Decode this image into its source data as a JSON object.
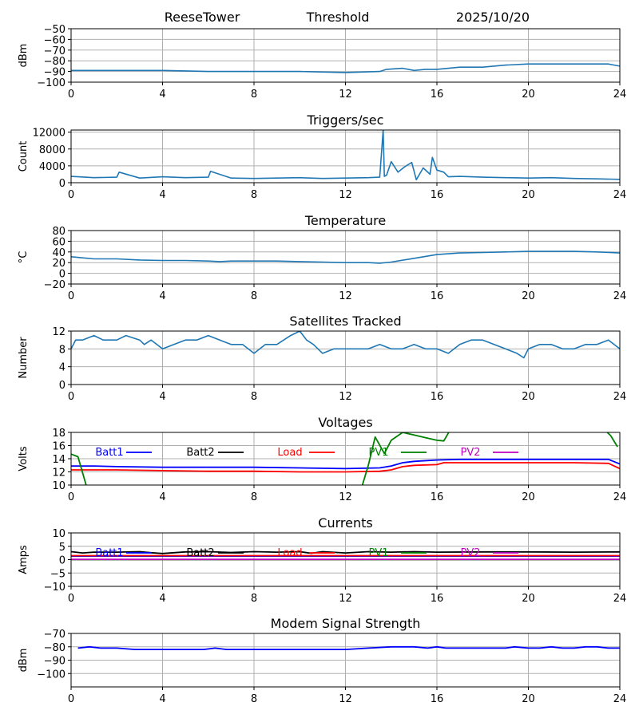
{
  "header": {
    "station": "ReeseTower",
    "threshold_label": "Threshold",
    "date": "2025/10/20"
  },
  "colors": {
    "series": "#1f77b4",
    "batt1": "#0000ff",
    "batt2": "#000000",
    "load": "#ff0000",
    "pv1": "#008000",
    "pv2": "#bf00bf",
    "grid": "#b0b0b0"
  },
  "chart_data": [
    {
      "id": "threshold",
      "type": "line",
      "title": "",
      "xlabel": "",
      "ylabel": "dBm",
      "xlim": [
        0,
        24
      ],
      "ylim": [
        -100,
        -50
      ],
      "xticks": [
        0,
        4,
        8,
        12,
        16,
        20,
        24
      ],
      "yticks": [
        -100,
        -90,
        -80,
        -70,
        -60,
        -50
      ],
      "series": [
        {
          "name": "Threshold",
          "color_key": "series",
          "x": [
            0,
            2,
            4,
            6,
            8,
            10,
            12,
            13.5,
            13.8,
            14.5,
            15,
            15.5,
            16,
            17,
            18,
            19,
            20,
            22,
            23.5,
            24
          ],
          "y": [
            -89,
            -89,
            -89,
            -90,
            -90,
            -90,
            -91,
            -90,
            -88,
            -87,
            -89,
            -88,
            -88,
            -86,
            -86,
            -84,
            -83,
            -83,
            -83,
            -85
          ]
        }
      ]
    },
    {
      "id": "triggers",
      "type": "line",
      "title": "Triggers/sec",
      "xlabel": "",
      "ylabel": "Count",
      "xlim": [
        0,
        24
      ],
      "ylim": [
        0,
        12500
      ],
      "xticks": [
        0,
        4,
        8,
        12,
        16,
        20,
        24
      ],
      "yticks": [
        0,
        4000,
        8000,
        12000
      ],
      "series": [
        {
          "name": "Triggers",
          "color_key": "series",
          "x": [
            0,
            1,
            2,
            2.1,
            3,
            4,
            5,
            6,
            6.1,
            7,
            8,
            9,
            10,
            11,
            12,
            13,
            13.5,
            13.65,
            13.7,
            13.8,
            14,
            14.3,
            14.6,
            14.9,
            15.1,
            15.4,
            15.7,
            15.8,
            16,
            16.3,
            16.5,
            17,
            18,
            19,
            20,
            21,
            22,
            23,
            24
          ],
          "y": [
            1500,
            1200,
            1300,
            2500,
            1100,
            1400,
            1200,
            1300,
            2700,
            1100,
            1000,
            1100,
            1200,
            1000,
            1100,
            1200,
            1300,
            12500,
            1500,
            1800,
            5000,
            2500,
            3800,
            4800,
            700,
            3500,
            2000,
            6000,
            3000,
            2500,
            1400,
            1500,
            1300,
            1200,
            1100,
            1200,
            1000,
            900,
            800
          ]
        }
      ]
    },
    {
      "id": "temperature",
      "type": "line",
      "title": "Temperature",
      "xlabel": "",
      "ylabel": "°C",
      "xlim": [
        0,
        24
      ],
      "ylim": [
        -20,
        80
      ],
      "xticks": [
        0,
        4,
        8,
        12,
        16,
        20,
        24
      ],
      "yticks": [
        -20,
        0,
        20,
        40,
        60,
        80
      ],
      "series": [
        {
          "name": "Temperature",
          "color_key": "series",
          "x": [
            0,
            0.5,
            1,
            2,
            3,
            4,
            5,
            6,
            6.5,
            7,
            8,
            9,
            10,
            11,
            12,
            13,
            13.5,
            14,
            15,
            16,
            17,
            18,
            19,
            20,
            21,
            22,
            23,
            24
          ],
          "y": [
            31,
            29,
            27,
            27,
            25,
            24,
            24,
            23,
            22,
            23,
            23,
            23,
            22,
            21,
            20,
            20,
            19,
            21,
            28,
            35,
            38,
            39,
            40,
            41,
            41,
            41,
            40,
            38
          ]
        }
      ]
    },
    {
      "id": "satellites",
      "type": "line",
      "title": "Satellites Tracked",
      "xlabel": "",
      "ylabel": "Number",
      "xlim": [
        0,
        24
      ],
      "ylim": [
        0,
        12
      ],
      "xticks": [
        0,
        4,
        8,
        12,
        16,
        20,
        24
      ],
      "yticks": [
        0,
        4,
        8,
        12
      ],
      "series": [
        {
          "name": "Satellites",
          "color_key": "series",
          "x": [
            0,
            0.2,
            0.5,
            1,
            1.4,
            2,
            2.4,
            3,
            3.2,
            3.5,
            4,
            4.5,
            5,
            5.5,
            6,
            6.5,
            7,
            7.5,
            8,
            8.5,
            9,
            9.3,
            9.6,
            10,
            10.3,
            10.6,
            11,
            11.5,
            12,
            12.5,
            13,
            13.5,
            14,
            14.5,
            15,
            15.5,
            16,
            16.5,
            17,
            17.5,
            18,
            18.5,
            19,
            19.5,
            19.8,
            20,
            20.5,
            21,
            21.5,
            22,
            22.5,
            23,
            23.5,
            24
          ],
          "y": [
            8,
            10,
            10,
            11,
            10,
            10,
            11,
            10,
            9,
            10,
            8,
            9,
            10,
            10,
            11,
            10,
            9,
            9,
            7,
            9,
            9,
            10,
            11,
            12,
            10,
            9,
            7,
            8,
            8,
            8,
            8,
            9,
            8,
            8,
            9,
            8,
            8,
            7,
            9,
            10,
            10,
            9,
            8,
            7,
            6,
            8,
            9,
            9,
            8,
            8,
            9,
            9,
            10,
            8
          ]
        }
      ]
    },
    {
      "id": "voltages",
      "type": "line",
      "title": "Voltages",
      "xlabel": "",
      "ylabel": "Volts",
      "xlim": [
        0,
        24
      ],
      "ylim": [
        10,
        18
      ],
      "xticks": [
        0,
        4,
        8,
        12,
        16,
        20,
        24
      ],
      "yticks": [
        10,
        12,
        14,
        16,
        18
      ],
      "series": [
        {
          "name": "Batt1",
          "color_key": "batt1",
          "x": [
            0,
            1,
            2,
            4,
            6,
            8,
            10,
            12,
            13.5,
            14,
            14.5,
            15,
            16,
            17,
            18,
            20,
            22,
            23.5,
            24
          ],
          "y": [
            12.9,
            12.9,
            12.8,
            12.7,
            12.7,
            12.7,
            12.6,
            12.5,
            12.6,
            12.9,
            13.4,
            13.6,
            13.8,
            13.9,
            13.9,
            13.9,
            13.9,
            13.9,
            13.2
          ]
        },
        {
          "name": "Batt2",
          "color_key": "batt2",
          "x": [],
          "y": []
        },
        {
          "name": "Load",
          "color_key": "load",
          "x": [
            0,
            1,
            2,
            4,
            6,
            8,
            10,
            12,
            13.5,
            14,
            14.5,
            15,
            16,
            16.3,
            18,
            20,
            22,
            23.5,
            24
          ],
          "y": [
            12.3,
            12.3,
            12.3,
            12.2,
            12.1,
            12.1,
            12.0,
            12.0,
            12.1,
            12.3,
            12.8,
            13.0,
            13.1,
            13.4,
            13.4,
            13.4,
            13.4,
            13.3,
            12.5
          ]
        },
        {
          "name": "PV1",
          "color_key": "pv1",
          "x": [
            0,
            0.3,
            0.7,
            12.7,
            13.0,
            13.3,
            13.7,
            14.0,
            14.5,
            15.0,
            15.5,
            16.0,
            16.3,
            16.6,
            23.3,
            23.6,
            23.9
          ],
          "y": [
            14.7,
            14.3,
            9.5,
            9.5,
            13.0,
            17.3,
            14.8,
            16.8,
            18.0,
            17.6,
            17.2,
            16.8,
            16.7,
            18.5,
            18.5,
            17.5,
            15.8
          ]
        },
        {
          "name": "PV2",
          "color_key": "pv2",
          "x": [],
          "y": []
        }
      ]
    },
    {
      "id": "currents",
      "type": "line",
      "title": "Currents",
      "xlabel": "",
      "ylabel": "Amps",
      "xlim": [
        0,
        24
      ],
      "ylim": [
        -10,
        10
      ],
      "xticks": [
        0,
        4,
        8,
        12,
        16,
        20,
        24
      ],
      "yticks": [
        -10,
        -5,
        0,
        5,
        10
      ],
      "series": [
        {
          "name": "Batt1",
          "color_key": "batt1",
          "x": [
            0,
            24
          ],
          "y": [
            1.3,
            1.3
          ]
        },
        {
          "name": "Batt2",
          "color_key": "batt2",
          "x": [
            0,
            0.5,
            1,
            2,
            3,
            3.5,
            4,
            5,
            6,
            7,
            8,
            9,
            10,
            10.5,
            11,
            12,
            13,
            14,
            15,
            16,
            18,
            20,
            22,
            24
          ],
          "y": [
            3,
            2.5,
            2.8,
            2.8,
            3,
            2.6,
            2.3,
            2.9,
            3,
            2.7,
            3,
            2.8,
            3,
            2.4,
            3,
            2.5,
            3,
            2.8,
            3,
            2.8,
            2.9,
            2.9,
            2.8,
            2.9
          ]
        },
        {
          "name": "Load",
          "color_key": "load",
          "x": [
            0,
            24
          ],
          "y": [
            1.5,
            1.5
          ]
        },
        {
          "name": "PV1",
          "color_key": "pv1",
          "x": [
            0,
            24
          ],
          "y": [
            0.0,
            0.0
          ]
        },
        {
          "name": "PV2",
          "color_key": "pv2",
          "x": [
            0,
            24
          ],
          "y": [
            0.1,
            0.1
          ]
        }
      ]
    },
    {
      "id": "modem",
      "type": "line",
      "title": "Modem Signal Strength",
      "xlabel": "",
      "ylabel": "dBm",
      "xlim": [
        0,
        24
      ],
      "ylim": [
        -110,
        -70
      ],
      "xticks": [
        0,
        4,
        8,
        12,
        16,
        20,
        24
      ],
      "yticks": [
        -100,
        -90,
        -80,
        -70
      ],
      "series": [
        {
          "name": "Modem",
          "color_key": "batt1",
          "x": [
            0.3,
            0.8,
            1.3,
            2,
            2.8,
            4,
            5,
            5.8,
            6.3,
            6.8,
            8,
            10,
            12,
            13,
            14,
            15,
            15.6,
            16,
            16.4,
            17,
            18,
            19,
            19.4,
            20,
            20.5,
            21,
            21.5,
            22,
            22.5,
            23,
            23.5,
            24
          ],
          "y": [
            -81,
            -80,
            -81,
            -81,
            -82,
            -82,
            -82,
            -82,
            -81,
            -82,
            -82,
            -82,
            -82,
            -81,
            -80,
            -80,
            -81,
            -80,
            -81,
            -81,
            -81,
            -81,
            -80,
            -81,
            -81,
            -80,
            -81,
            -81,
            -80,
            -80,
            -81,
            -81
          ]
        }
      ]
    }
  ]
}
